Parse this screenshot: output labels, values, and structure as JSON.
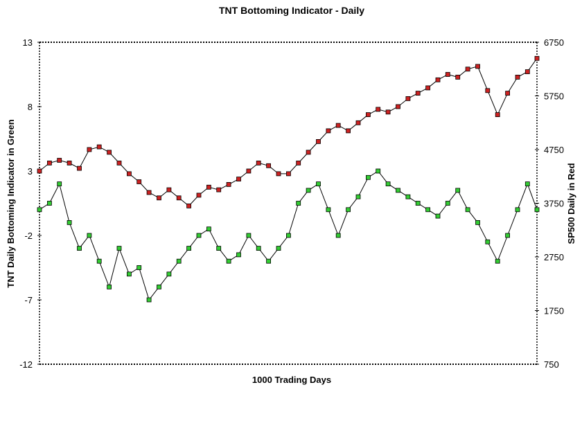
{
  "chart_data": {
    "type": "line",
    "title": "TNT Bottoming Indicator - Daily",
    "xlabel": "1000 Trading Days",
    "ylabel_left": "TNT Daily Bottoming Indicator in Green",
    "ylabel_right": "SP500 Daily in Red",
    "x_count": 1000,
    "y_left": {
      "min": -12,
      "max": 13,
      "ticks": [
        13,
        8,
        3,
        -2,
        -7,
        -12
      ],
      "tick_labels": [
        "13",
        "8",
        "3",
        "-2",
        "-7",
        "-12"
      ]
    },
    "y_right": {
      "min": 750,
      "max": 6750,
      "ticks": [
        6750,
        5750,
        4750,
        3750,
        2750,
        1750,
        750
      ],
      "tick_labels": [
        "6750",
        "5750",
        "4750",
        "3750",
        "2750",
        "1750",
        "750"
      ]
    },
    "grid": false,
    "legend": "none",
    "series": [
      {
        "axis": "left",
        "color": "#1f9e1f",
        "marker_fill": "#33cc33",
        "x": [
          0,
          20,
          40,
          60,
          80,
          100,
          120,
          140,
          160,
          180,
          200,
          220,
          240,
          260,
          280,
          300,
          320,
          340,
          360,
          380,
          400,
          420,
          440,
          460,
          480,
          500,
          520,
          540,
          560,
          580,
          600,
          620,
          640,
          660,
          680,
          700,
          720,
          740,
          760,
          780,
          800,
          820,
          840,
          860,
          880,
          900,
          920,
          940,
          960,
          980,
          999
        ],
        "values": [
          0.0,
          0.5,
          2.0,
          -1.0,
          -3.0,
          -2.0,
          -4.0,
          -6.0,
          -3.0,
          -5.0,
          -4.5,
          -7.0,
          -6.0,
          -5.0,
          -4.0,
          -3.0,
          -2.0,
          -1.5,
          -3.0,
          -4.0,
          -3.5,
          -2.0,
          -3.0,
          -4.0,
          -3.0,
          -2.0,
          0.5,
          1.5,
          2.0,
          0.0,
          -2.0,
          0.0,
          1.0,
          2.5,
          3.0,
          2.0,
          1.5,
          1.0,
          0.5,
          0.0,
          -0.5,
          0.5,
          1.5,
          0.0,
          -1.0,
          -2.5,
          -4.0,
          -2.0,
          0.0,
          2.0,
          0.0
        ]
      },
      {
        "axis": "right",
        "color": "#c0c0c0",
        "marker_fill": "#cc2222",
        "x": [
          0,
          20,
          40,
          60,
          80,
          100,
          120,
          140,
          160,
          180,
          200,
          220,
          240,
          260,
          280,
          300,
          320,
          340,
          360,
          380,
          400,
          420,
          440,
          460,
          480,
          500,
          520,
          540,
          560,
          580,
          600,
          620,
          640,
          660,
          680,
          700,
          720,
          740,
          760,
          780,
          800,
          820,
          840,
          860,
          880,
          900,
          920,
          940,
          960,
          980,
          999
        ],
        "values": [
          4350,
          4500,
          4550,
          4500,
          4400,
          4750,
          4800,
          4700,
          4500,
          4300,
          4150,
          3950,
          3850,
          4000,
          3850,
          3700,
          3900,
          4050,
          4000,
          4100,
          4200,
          4350,
          4500,
          4450,
          4300,
          4300,
          4500,
          4700,
          4900,
          5100,
          5200,
          5100,
          5250,
          5400,
          5500,
          5450,
          5550,
          5700,
          5800,
          5900,
          6050,
          6150,
          6100,
          6250,
          6300,
          5850,
          5400,
          5800,
          6100,
          6200,
          6450
        ]
      }
    ]
  }
}
